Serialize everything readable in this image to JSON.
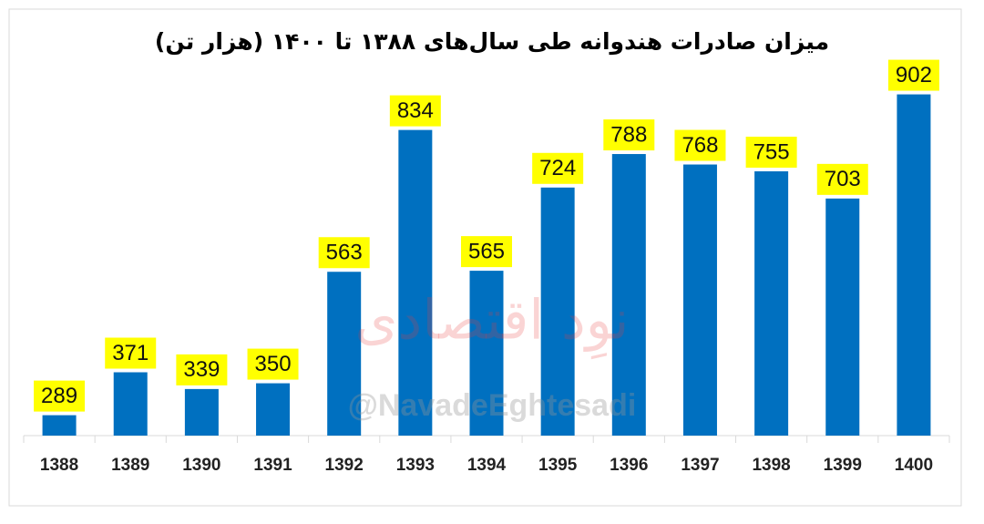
{
  "chart_data": {
    "type": "bar",
    "title": "میزان صادرات هندوانه طی سال‌های ۱۳۸۸ تا ۱۴۰۰ (هزار تن)",
    "categories": [
      "1388",
      "1389",
      "1390",
      "1391",
      "1392",
      "1393",
      "1394",
      "1395",
      "1396",
      "1397",
      "1398",
      "1399",
      "1400"
    ],
    "values": [
      289,
      371,
      339,
      350,
      563,
      834,
      565,
      724,
      788,
      768,
      755,
      703,
      902
    ],
    "color": "#0070c0",
    "label_color": "#ffff00",
    "ylim": [
      250,
      950
    ],
    "watermark": "@NavadeEghtesadi",
    "watermark_logo": "نوِد اقتصادی"
  }
}
